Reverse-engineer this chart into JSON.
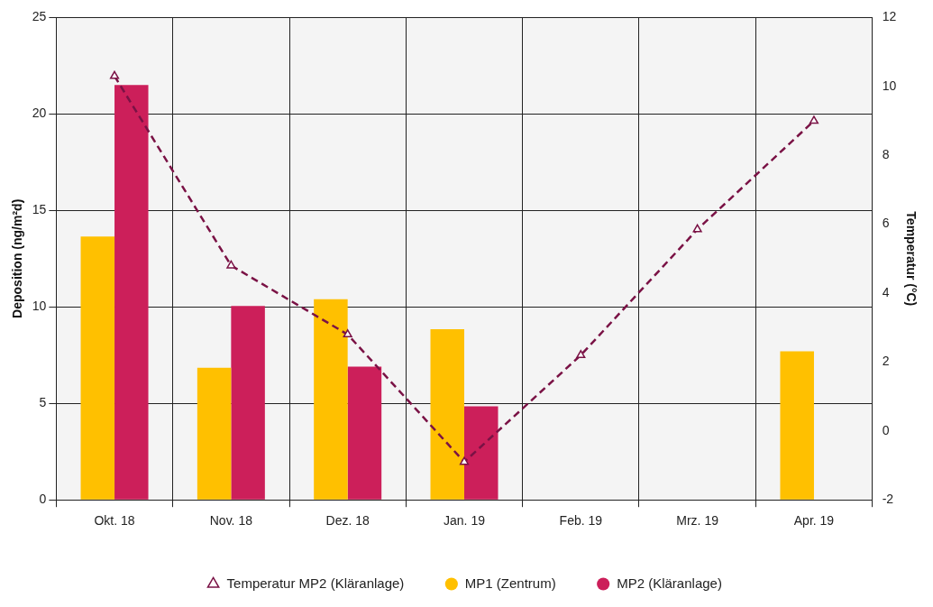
{
  "chart_data": {
    "type": "bar",
    "categories": [
      "Okt. 18",
      "Nov. 18",
      "Dez. 18",
      "Jan. 19",
      "Feb. 19",
      "Mrz. 19",
      "Apr. 19"
    ],
    "series": [
      {
        "name": "MP1 (Zentrum)",
        "color": "#ffc000",
        "values": [
          13.65,
          6.85,
          10.4,
          8.85,
          null,
          null,
          7.7
        ]
      },
      {
        "name": "MP2 (Kläranlage)",
        "color": "#cc1f5a",
        "values": [
          21.5,
          10.05,
          6.9,
          4.85,
          null,
          null,
          null
        ]
      },
      {
        "name": "Temperatur MP2 (Kläranlage)",
        "type": "line",
        "axis": "y2",
        "color": "#7a1245",
        "marker": "triangle",
        "line_style": "dashed",
        "values": [
          10.3,
          4.8,
          2.8,
          -0.9,
          2.2,
          5.85,
          9.0
        ]
      }
    ],
    "ylabel": "Deposition (ng/m²d)",
    "y2label": "Temperatur (°C)",
    "ylim": [
      0,
      25
    ],
    "yticks": [
      0,
      5,
      10,
      15,
      20,
      25
    ],
    "y2lim": [
      -2,
      12
    ],
    "y2ticks": [
      -2,
      0,
      2,
      4,
      6,
      8,
      10,
      12
    ],
    "grid": true,
    "legend": "bottom"
  }
}
